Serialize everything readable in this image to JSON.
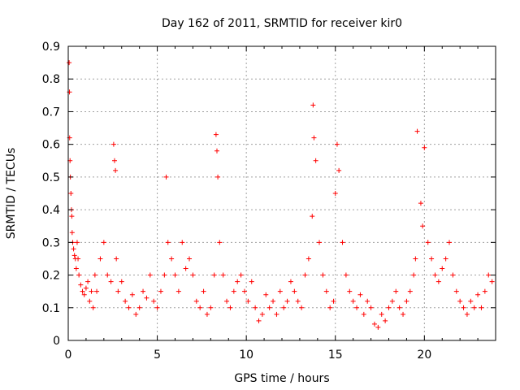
{
  "chart_data": {
    "type": "scatter",
    "title": "Day 162 of 2011, SRMTID for receiver kir0",
    "xlabel": "GPS time / hours",
    "ylabel": "SRMTID / TECUs",
    "xlim": [
      0,
      24
    ],
    "ylim": [
      0,
      0.9
    ],
    "xticks": [
      "0",
      "5",
      "10",
      "15",
      "20"
    ],
    "yticks": [
      "0",
      "0.1",
      "0.2",
      "0.3",
      "0.4",
      "0.5",
      "0.6",
      "0.7",
      "0.8",
      "0.9"
    ],
    "grid": true,
    "marker": "+",
    "series": [
      {
        "name": "SRMTID",
        "color": "#ff0000",
        "x": [
          0.05,
          0.07,
          0.08,
          0.1,
          0.12,
          0.15,
          0.18,
          0.2,
          0.22,
          0.25,
          0.3,
          0.35,
          0.4,
          0.45,
          0.5,
          0.55,
          0.6,
          0.7,
          0.8,
          0.9,
          1.0,
          1.1,
          1.2,
          1.3,
          1.4,
          1.5,
          1.6,
          1.8,
          2.0,
          2.2,
          2.4,
          2.55,
          2.6,
          2.65,
          2.7,
          2.8,
          3.0,
          3.2,
          3.4,
          3.6,
          3.8,
          4.0,
          4.2,
          4.4,
          4.6,
          4.8,
          5.0,
          5.2,
          5.4,
          5.5,
          5.6,
          5.8,
          6.0,
          6.2,
          6.4,
          6.6,
          6.8,
          7.0,
          7.2,
          7.4,
          7.6,
          7.8,
          8.0,
          8.2,
          8.3,
          8.35,
          8.4,
          8.5,
          8.7,
          8.9,
          9.1,
          9.3,
          9.5,
          9.7,
          9.9,
          10.1,
          10.3,
          10.5,
          10.7,
          10.9,
          11.1,
          11.3,
          11.5,
          11.7,
          11.9,
          12.1,
          12.3,
          12.5,
          12.7,
          12.9,
          13.1,
          13.3,
          13.5,
          13.7,
          13.75,
          13.8,
          13.9,
          14.1,
          14.3,
          14.5,
          14.7,
          14.9,
          15.0,
          15.1,
          15.2,
          15.4,
          15.6,
          15.8,
          16.0,
          16.2,
          16.4,
          16.6,
          16.8,
          17.0,
          17.2,
          17.4,
          17.6,
          17.8,
          18.0,
          18.2,
          18.4,
          18.6,
          18.8,
          19.0,
          19.2,
          19.4,
          19.5,
          19.6,
          19.8,
          19.9,
          20.0,
          20.2,
          20.4,
          20.6,
          20.8,
          21.0,
          21.2,
          21.4,
          21.6,
          21.8,
          22.0,
          22.2,
          22.4,
          22.6,
          22.8,
          23.0,
          23.2,
          23.4,
          23.6,
          23.8
        ],
        "y": [
          0.85,
          0.76,
          0.62,
          0.55,
          0.5,
          0.45,
          0.4,
          0.38,
          0.33,
          0.3,
          0.28,
          0.26,
          0.25,
          0.22,
          0.3,
          0.25,
          0.2,
          0.17,
          0.15,
          0.14,
          0.16,
          0.18,
          0.12,
          0.15,
          0.1,
          0.2,
          0.15,
          0.25,
          0.3,
          0.2,
          0.18,
          0.6,
          0.55,
          0.52,
          0.25,
          0.15,
          0.18,
          0.12,
          0.1,
          0.14,
          0.08,
          0.1,
          0.15,
          0.13,
          0.2,
          0.12,
          0.1,
          0.15,
          0.2,
          0.5,
          0.3,
          0.25,
          0.2,
          0.15,
          0.3,
          0.22,
          0.25,
          0.2,
          0.12,
          0.1,
          0.15,
          0.08,
          0.1,
          0.2,
          0.63,
          0.58,
          0.5,
          0.3,
          0.2,
          0.12,
          0.1,
          0.15,
          0.18,
          0.2,
          0.15,
          0.12,
          0.18,
          0.1,
          0.06,
          0.08,
          0.14,
          0.1,
          0.12,
          0.08,
          0.15,
          0.1,
          0.12,
          0.18,
          0.15,
          0.12,
          0.1,
          0.2,
          0.25,
          0.38,
          0.72,
          0.62,
          0.55,
          0.3,
          0.2,
          0.15,
          0.1,
          0.12,
          0.45,
          0.6,
          0.52,
          0.3,
          0.2,
          0.15,
          0.12,
          0.1,
          0.14,
          0.08,
          0.12,
          0.1,
          0.05,
          0.04,
          0.08,
          0.06,
          0.1,
          0.12,
          0.15,
          0.1,
          0.08,
          0.12,
          0.15,
          0.2,
          0.25,
          0.64,
          0.42,
          0.35,
          0.59,
          0.3,
          0.25,
          0.2,
          0.18,
          0.22,
          0.25,
          0.3,
          0.2,
          0.15,
          0.12,
          0.1,
          0.08,
          0.12,
          0.1,
          0.14,
          0.1,
          0.15,
          0.2,
          0.18
        ]
      }
    ]
  }
}
